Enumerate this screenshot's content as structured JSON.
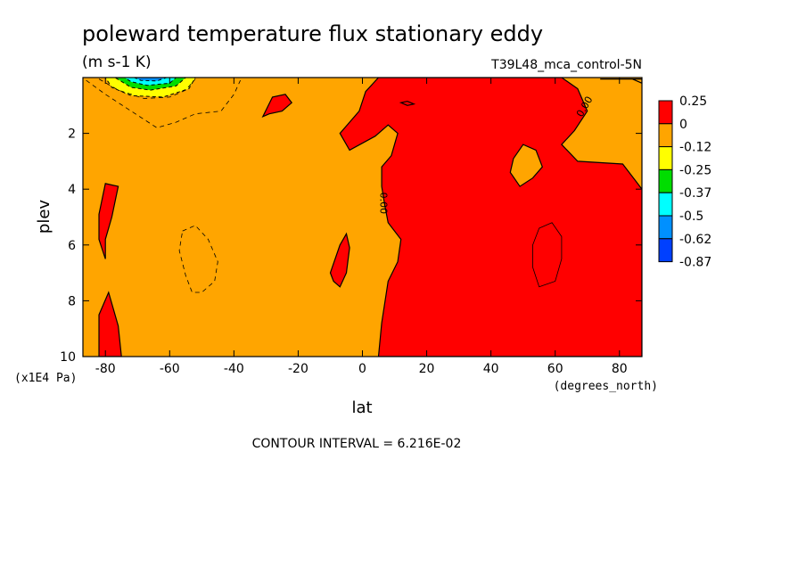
{
  "title": "poleward temperature flux stationary eddy",
  "units": "(m s-1 K)",
  "run_label": "T39L48_mca_control-5N",
  "xunit_label": "(degrees_north)",
  "yunit_label": "(x1E4 Pa)",
  "contour_interval": "CONTOUR INTERVAL = 6.216E-02",
  "colors": {
    "red": "#ff0000",
    "orange": "#ffa500",
    "yellow": "#ffff00",
    "green": "#00dd00",
    "cyan": "#00ffff",
    "blue_mid": "#0090ff",
    "blue": "#0040ff"
  },
  "chart_data": {
    "type": "heatmap",
    "title": "poleward temperature flux stationary eddy",
    "xlabel": "lat",
    "ylabel": "plev",
    "xlim": [
      -87,
      87
    ],
    "ylim": [
      10,
      0
    ],
    "x_ticks": [
      "-80",
      "-60",
      "-40",
      "-20",
      "0",
      "20",
      "40",
      "60",
      "80"
    ],
    "y_ticks": [
      "2",
      "4",
      "6",
      "8",
      "10"
    ],
    "x_tick_values": [
      -80,
      -60,
      -40,
      -20,
      0,
      20,
      40,
      60,
      80
    ],
    "y_tick_values": [
      2,
      4,
      6,
      8,
      10
    ],
    "colorbar_labels": [
      "0.25",
      "0",
      "-0.12",
      "-0.25",
      "-0.37",
      "-0.5",
      "-0.62",
      "-0.87"
    ],
    "colorbar_colors": [
      "#ff0000",
      "#ffa500",
      "#ffff00",
      "#00dd00",
      "#00ffff",
      "#0090ff",
      "#0040ff"
    ],
    "contour_label_text": "0.00",
    "regions": [
      {
        "name": "positive-flux-northern-hemisphere",
        "color": "#ff0000",
        "poly": [
          [
            5,
            0
          ],
          [
            62,
            0
          ],
          [
            67,
            0.4
          ],
          [
            70,
            1.2
          ],
          [
            66,
            1.9
          ],
          [
            62,
            2.4
          ],
          [
            67,
            3.0
          ],
          [
            81,
            3.1
          ],
          [
            85,
            3.7
          ],
          [
            87,
            4.0
          ],
          [
            87,
            10
          ],
          [
            5,
            10
          ],
          [
            6,
            8.8
          ],
          [
            8,
            7.3
          ],
          [
            11,
            6.6
          ],
          [
            12,
            5.8
          ],
          [
            8,
            5.2
          ],
          [
            7,
            4.6
          ],
          [
            6,
            3.9
          ],
          [
            6,
            3.2
          ],
          [
            9,
            2.8
          ],
          [
            11,
            2.0
          ],
          [
            8,
            1.7
          ],
          [
            4,
            2.1
          ],
          [
            -4,
            2.6
          ],
          [
            -7,
            2.0
          ],
          [
            -4,
            1.6
          ],
          [
            -1,
            1.2
          ],
          [
            1,
            0.5
          ]
        ]
      },
      {
        "name": "orange-island-north-pole",
        "color": "#ffa500",
        "poly": [
          [
            74,
            0.05
          ],
          [
            84,
            0.05
          ],
          [
            87,
            0.2
          ],
          [
            87,
            0.05
          ]
        ]
      },
      {
        "name": "orange-island-45N",
        "color": "#ffa500",
        "poly": [
          [
            47,
            2.9
          ],
          [
            50,
            2.4
          ],
          [
            54,
            2.6
          ],
          [
            56,
            3.2
          ],
          [
            53,
            3.6
          ],
          [
            49,
            3.9
          ],
          [
            46,
            3.4
          ]
        ]
      },
      {
        "name": "negative-cell-55N",
        "color": "#ff0000",
        "contour_only": true,
        "poly": [
          [
            55,
            5.4
          ],
          [
            59,
            5.2
          ],
          [
            62,
            5.7
          ],
          [
            62,
            6.5
          ],
          [
            60,
            7.3
          ],
          [
            55,
            7.5
          ],
          [
            53,
            6.8
          ],
          [
            53,
            6.0
          ]
        ]
      },
      {
        "name": "red-island-30S",
        "color": "#ff0000",
        "poly": [
          [
            -31,
            1.4
          ],
          [
            -28,
            0.7
          ],
          [
            -24,
            0.6
          ],
          [
            -22,
            0.9
          ],
          [
            -25,
            1.2
          ],
          [
            -29,
            1.3
          ]
        ]
      },
      {
        "name": "red-island-15N-top",
        "color": "#ff0000",
        "poly": [
          [
            12,
            0.9
          ],
          [
            14,
            0.85
          ],
          [
            16,
            0.95
          ],
          [
            14,
            1.0
          ]
        ]
      },
      {
        "name": "red-island-80S-mid",
        "color": "#ff0000",
        "poly": [
          [
            -82,
            4.9
          ],
          [
            -80,
            3.8
          ],
          [
            -76,
            3.9
          ],
          [
            -78,
            5.0
          ],
          [
            -80,
            5.8
          ],
          [
            -80,
            6.5
          ],
          [
            -82,
            5.8
          ]
        ]
      },
      {
        "name": "red-island-8S",
        "color": "#ff0000",
        "poly": [
          [
            -10,
            7.0
          ],
          [
            -7,
            6.0
          ],
          [
            -5,
            5.6
          ],
          [
            -4,
            6.1
          ],
          [
            -5,
            7.0
          ],
          [
            -7,
            7.5
          ],
          [
            -9,
            7.3
          ]
        ]
      },
      {
        "name": "red-island-80S-bottom",
        "color": "#ff0000",
        "poly": [
          [
            -82,
            10
          ],
          [
            -82,
            8.5
          ],
          [
            -79,
            7.7
          ],
          [
            -76,
            8.9
          ],
          [
            -75,
            10
          ]
        ]
      }
    ],
    "cold_anomaly": {
      "name": "negative-cell-65S-top",
      "layers": [
        {
          "color": "#ffff00",
          "poly": [
            [
              -80,
              0
            ],
            [
              -52,
              0
            ],
            [
              -54,
              0.4
            ],
            [
              -62,
              0.7
            ],
            [
              -72,
              0.65
            ],
            [
              -78,
              0.35
            ]
          ]
        },
        {
          "color": "#00dd00",
          "poly": [
            [
              -77,
              0
            ],
            [
              -55,
              0
            ],
            [
              -58,
              0.3
            ],
            [
              -66,
              0.45
            ],
            [
              -72,
              0.35
            ]
          ]
        },
        {
          "color": "#00ffff",
          "poly": [
            [
              -74,
              0
            ],
            [
              -58,
              0
            ],
            [
              -60,
              0.2
            ],
            [
              -67,
              0.28
            ],
            [
              -72,
              0.15
            ]
          ]
        },
        {
          "color": "#0090ff",
          "poly": [
            [
              -71,
              0
            ],
            [
              -61,
              0
            ],
            [
              -64,
              0.12
            ],
            [
              -69,
              0.1
            ]
          ]
        }
      ]
    },
    "dashed_contours": [
      {
        "name": "negative-contour-upper",
        "points": [
          [
            -86,
            0.1
          ],
          [
            -80,
            0.6
          ],
          [
            -72,
            1.2
          ],
          [
            -64,
            1.8
          ],
          [
            -58,
            1.6
          ],
          [
            -52,
            1.3
          ],
          [
            -44,
            1.2
          ],
          [
            -40,
            0.6
          ],
          [
            -38,
            0.1
          ]
        ]
      },
      {
        "name": "negative-contour-upper-inner",
        "points": [
          [
            -82,
            0.05
          ],
          [
            -76,
            0.45
          ],
          [
            -68,
            0.75
          ],
          [
            -60,
            0.7
          ],
          [
            -55,
            0.45
          ],
          [
            -52,
            0.05
          ]
        ]
      },
      {
        "name": "negative-contour-mid",
        "points": [
          [
            -56,
            5.5
          ],
          [
            -52,
            5.3
          ],
          [
            -48,
            5.8
          ],
          [
            -45,
            6.6
          ],
          [
            -46,
            7.3
          ],
          [
            -50,
            7.7
          ],
          [
            -53,
            7.7
          ],
          [
            -55,
            7.1
          ],
          [
            -57,
            6.2
          ],
          [
            -56,
            5.5
          ]
        ]
      }
    ]
  }
}
